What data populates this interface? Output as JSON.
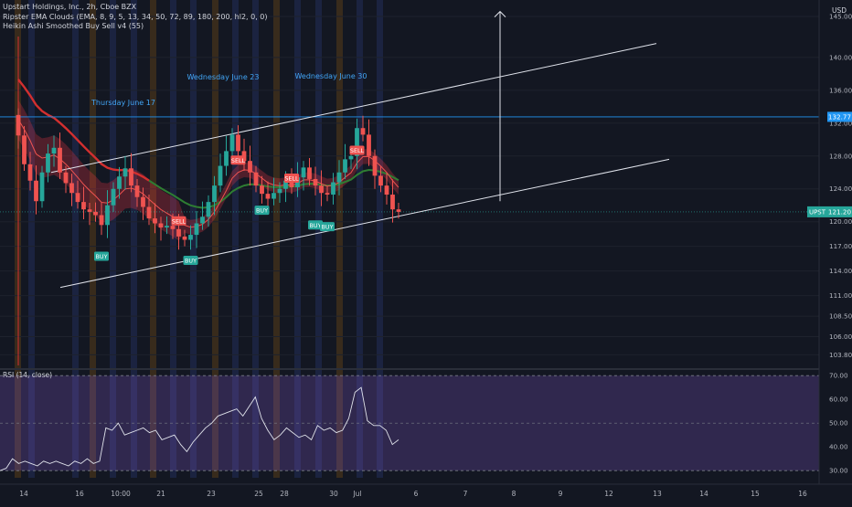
{
  "header": {
    "title": "Upstart Holdings, Inc., 2h, Cboe BZX",
    "indicator1": "Ripster EMA Clouds (EMA, 8, 9, 5, 13, 34, 50, 72, 89, 180, 200, hl2, 0, 0)",
    "indicator2": "Heikin Ashi Smoothed Buy Sell v4  (55)",
    "currency": "USD"
  },
  "chart_data": [
    {
      "type": "candlestick",
      "symbol": "UPST",
      "last_price_label": "121.20",
      "resistance_label": "132.77",
      "resistance_level": 132.77,
      "last_price": 121.2,
      "ylim": [
        102.5,
        147.0
      ],
      "y_ticks": [
        "145.00",
        "140.00",
        "136.00",
        "132.00",
        "128.00",
        "124.00",
        "120.00",
        "117.00",
        "114.00",
        "111.00",
        "108.50",
        "106.00",
        "103.80"
      ],
      "x_ticks": [
        "14",
        "16",
        "10:00",
        "21",
        "23",
        "25",
        "28",
        "30",
        "Jul",
        "6",
        "7",
        "8",
        "9",
        "12",
        "13",
        "14",
        "15",
        "16"
      ],
      "annotations": [
        "Thursday June 17",
        "Wednesday June 23",
        "Wednesday June 30"
      ],
      "signals": [
        "BUY",
        "SELL",
        "BUY",
        "SELL",
        "BUY",
        "SELL",
        "BUY",
        "SELL",
        "BUY"
      ],
      "closes": [
        130.5,
        127,
        125,
        122.5,
        126,
        128.3,
        129,
        126,
        124.7,
        123.5,
        122.4,
        121.5,
        121.2,
        120.8,
        119.6,
        122,
        124,
        125.5,
        126.5,
        124.4,
        123,
        121.8,
        120.4,
        119.8,
        119.3,
        119.5,
        119.1,
        118.2,
        117.8,
        118.4,
        119.8,
        120.6,
        122.4,
        124.4,
        126.8,
        128.6,
        130.6,
        128.6,
        127.4,
        126,
        124.4,
        123.4,
        122.8,
        123.5,
        124,
        125,
        124.2,
        125.4,
        126.6,
        125.2,
        124.4,
        123.5,
        123.3,
        124.8,
        126,
        127.6,
        128,
        131.4,
        130.6,
        128,
        125.6,
        124.4,
        123.3,
        121.5,
        121.2
      ]
    },
    {
      "type": "line",
      "title": "RSI (14, close)",
      "ylim": [
        27.0,
        72.0
      ],
      "y_ticks": [
        "70.00",
        "60.00",
        "50.00",
        "40.00",
        "30.00"
      ],
      "values": [
        30,
        31,
        35,
        33,
        34,
        33,
        32,
        34,
        33,
        34,
        33,
        32,
        34,
        33,
        35,
        33,
        34,
        48,
        47,
        50,
        45,
        46,
        47,
        48,
        46,
        47,
        43,
        44,
        45,
        41,
        38,
        42,
        45,
        48,
        50,
        53,
        54,
        55,
        56,
        53,
        57,
        61,
        52,
        47,
        43,
        45,
        48,
        46,
        44,
        45,
        43,
        49,
        47,
        48,
        46,
        47,
        52,
        63,
        65,
        51,
        49,
        49,
        47,
        41,
        43
      ]
    }
  ]
}
